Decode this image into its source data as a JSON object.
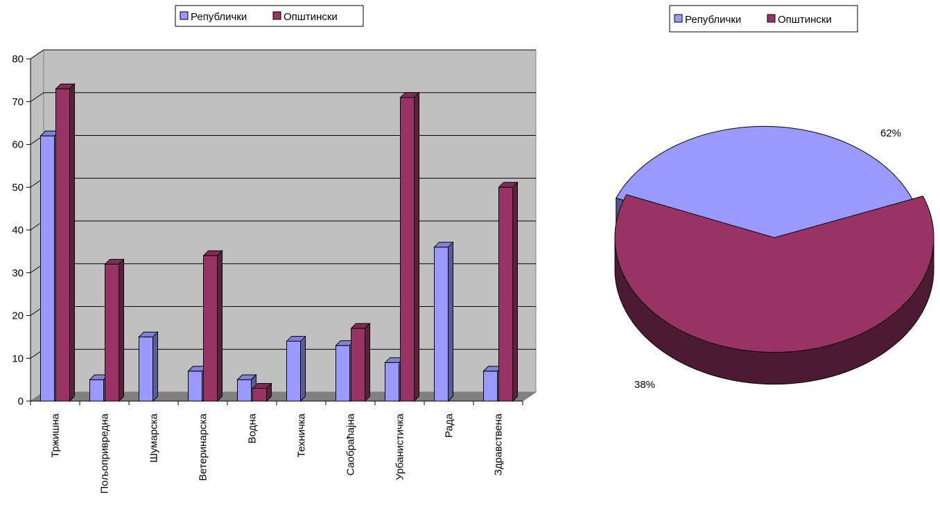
{
  "chart_data": [
    {
      "type": "bar",
      "categories": [
        "Тржишна",
        "Пољопривредна",
        "Шумарска",
        "Ветеринарска",
        "Водна",
        "Техничка",
        "Саобраћајна",
        "Урбанистичка",
        "Рада",
        "Здравствена"
      ],
      "series": [
        {
          "name": "Републички",
          "color": "#9999ff",
          "values": [
            62,
            5,
            15,
            7,
            5,
            14,
            13,
            9,
            36,
            7
          ]
        },
        {
          "name": "Општински",
          "color": "#993366",
          "values": [
            73,
            32,
            0,
            34,
            3,
            0,
            17,
            71,
            0,
            50
          ]
        }
      ],
      "ylim": [
        0,
        80
      ],
      "yticks": [
        0,
        10,
        20,
        30,
        40,
        50,
        60,
        70,
        80
      ],
      "grid": true,
      "legend": "top-center",
      "plot_background": "#c0c0c0"
    },
    {
      "type": "pie",
      "labels": [
        "Републички",
        "Општински"
      ],
      "values": [
        38,
        62
      ],
      "value_labels": [
        "38%",
        "62%"
      ],
      "colors": [
        "#9999ff",
        "#993366"
      ],
      "legend": "top-center"
    }
  ],
  "legend_labels": {
    "republic": "Републички",
    "municipal": "Општински"
  }
}
